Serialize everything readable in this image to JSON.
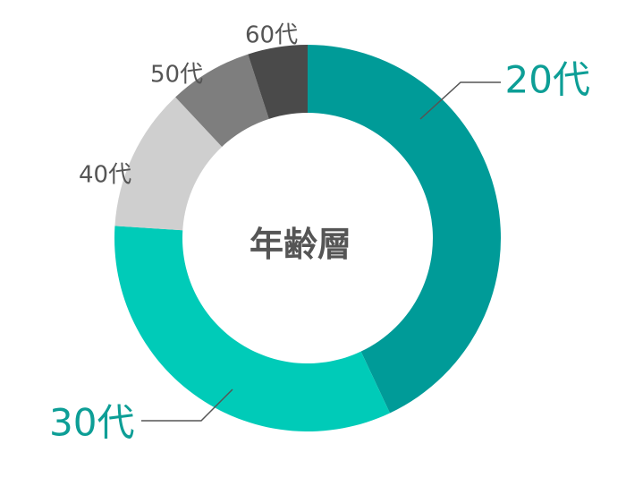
{
  "chart_data": {
    "type": "pie",
    "donut": true,
    "title": "",
    "center_label": "年齢層",
    "categories": [
      "20代",
      "30代",
      "40代",
      "50代",
      "60代"
    ],
    "values": [
      43,
      33,
      12,
      7,
      5
    ],
    "unit": "%",
    "colors": [
      "#009B98",
      "#00CBB8",
      "#CFCFCF",
      "#7E7E7E",
      "#4A4A4A"
    ],
    "label_colors": [
      "#0D9E96",
      "#0D9E96",
      "#555555",
      "#555555",
      "#555555"
    ],
    "emphasized": [
      "20代",
      "30代"
    ],
    "start": "12 o'clock",
    "direction": "clockwise",
    "legend": "none"
  }
}
